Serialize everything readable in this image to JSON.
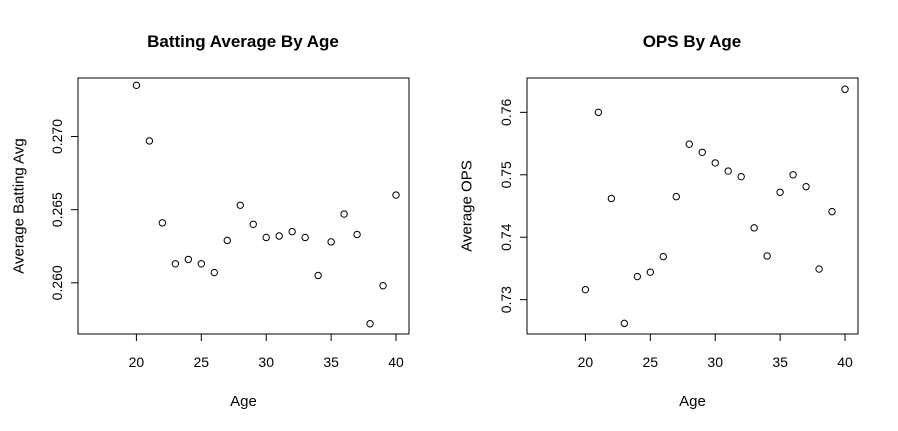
{
  "chart_data": [
    {
      "type": "scatter",
      "title": "Batting Average By Age",
      "xlabel": "Age",
      "ylabel": "Average Batting Avg",
      "xlim": [
        15.5,
        41
      ],
      "ylim": [
        0.2565,
        0.274
      ],
      "xticks": [
        20,
        25,
        30,
        35,
        40
      ],
      "yticks": [
        0.26,
        0.265,
        0.27
      ],
      "ytick_labels": [
        "0.260",
        "0.265",
        "0.270"
      ],
      "grid": false,
      "points": [
        {
          "x": 20,
          "y": 0.2735
        },
        {
          "x": 21,
          "y": 0.2697
        },
        {
          "x": 22,
          "y": 0.2641
        },
        {
          "x": 23,
          "y": 0.2613
        },
        {
          "x": 24,
          "y": 0.2616
        },
        {
          "x": 25,
          "y": 0.2613
        },
        {
          "x": 26,
          "y": 0.2607
        },
        {
          "x": 27,
          "y": 0.2629
        },
        {
          "x": 28,
          "y": 0.2653
        },
        {
          "x": 29,
          "y": 0.264
        },
        {
          "x": 30,
          "y": 0.2631
        },
        {
          "x": 31,
          "y": 0.2632
        },
        {
          "x": 32,
          "y": 0.2635
        },
        {
          "x": 33,
          "y": 0.2631
        },
        {
          "x": 34,
          "y": 0.2605
        },
        {
          "x": 35,
          "y": 0.2628
        },
        {
          "x": 36,
          "y": 0.2647
        },
        {
          "x": 37,
          "y": 0.2633
        },
        {
          "x": 38,
          "y": 0.2572
        },
        {
          "x": 39,
          "y": 0.2598
        },
        {
          "x": 40,
          "y": 0.266
        }
      ]
    },
    {
      "type": "scatter",
      "title": "OPS By Age",
      "xlabel": "Age",
      "ylabel": "Average OPS",
      "xlim": [
        15.5,
        41
      ],
      "ylim": [
        0.7245,
        0.7655
      ],
      "xticks": [
        20,
        25,
        30,
        35,
        40
      ],
      "yticks": [
        0.73,
        0.74,
        0.75,
        0.76
      ],
      "ytick_labels": [
        "0.73",
        "0.74",
        "0.75",
        "0.76"
      ],
      "grid": false,
      "points": [
        {
          "x": 20,
          "y": 0.7316
        },
        {
          "x": 21,
          "y": 0.76
        },
        {
          "x": 22,
          "y": 0.7462
        },
        {
          "x": 23,
          "y": 0.7262
        },
        {
          "x": 24,
          "y": 0.7337
        },
        {
          "x": 25,
          "y": 0.7344
        },
        {
          "x": 26,
          "y": 0.7369
        },
        {
          "x": 27,
          "y": 0.7465
        },
        {
          "x": 28,
          "y": 0.7549
        },
        {
          "x": 29,
          "y": 0.7536
        },
        {
          "x": 30,
          "y": 0.7519
        },
        {
          "x": 31,
          "y": 0.7506
        },
        {
          "x": 32,
          "y": 0.7497
        },
        {
          "x": 33,
          "y": 0.7415
        },
        {
          "x": 34,
          "y": 0.737
        },
        {
          "x": 35,
          "y": 0.7472
        },
        {
          "x": 36,
          "y": 0.75
        },
        {
          "x": 37,
          "y": 0.7481
        },
        {
          "x": 38,
          "y": 0.7349
        },
        {
          "x": 39,
          "y": 0.7441
        },
        {
          "x": 40,
          "y": 0.7637
        }
      ]
    }
  ]
}
